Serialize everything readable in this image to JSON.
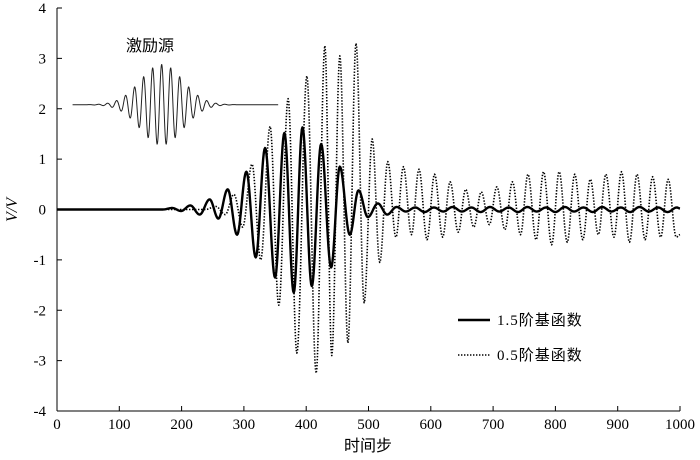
{
  "chart_data": {
    "type": "line",
    "xlabel": "时间步",
    "ylabel": "V/V",
    "xlim": [
      0,
      1000
    ],
    "ylim": [
      -4,
      4
    ],
    "xticks": [
      0,
      100,
      200,
      300,
      400,
      500,
      600,
      700,
      800,
      900,
      1000
    ],
    "yticks": [
      -4,
      -3,
      -2,
      -1,
      0,
      1,
      2,
      3,
      4
    ],
    "grid": false,
    "legend_position": "lower-right",
    "annotation": "激励源",
    "series": [
      {
        "name": "1.5阶基函数",
        "style": "solid",
        "color": "#000000",
        "x": [
          0,
          170,
          185,
          199,
          214,
          229,
          245,
          259,
          274,
          289,
          304,
          319,
          334,
          350,
          365,
          380,
          394,
          409,
          424,
          440,
          454,
          470,
          484,
          499,
          515,
          530,
          545,
          560,
          575,
          590,
          605,
          620,
          635,
          650,
          665,
          680,
          695,
          710,
          725,
          740,
          755,
          770,
          785,
          800,
          815,
          830,
          845,
          860,
          875,
          890,
          905,
          920,
          935,
          950,
          965,
          980,
          995,
          1000
        ],
        "y": [
          0,
          0,
          0.03,
          -0.03,
          0.08,
          -0.1,
          0.2,
          -0.18,
          0.4,
          -0.5,
          0.75,
          -0.95,
          1.22,
          -1.35,
          1.52,
          -1.65,
          1.63,
          -1.52,
          1.3,
          -1.15,
          0.85,
          -0.5,
          0.38,
          -0.15,
          0.12,
          -0.1,
          0.05,
          -0.04,
          0.04,
          -0.05,
          0.04,
          -0.04,
          0.05,
          -0.04,
          0.04,
          -0.05,
          0.05,
          -0.04,
          0.04,
          -0.05,
          0.05,
          -0.04,
          0.04,
          -0.05,
          0.05,
          -0.04,
          0.04,
          -0.05,
          0.05,
          -0.04,
          0.04,
          -0.05,
          0.05,
          -0.04,
          0.04,
          -0.05,
          0.04,
          0.02
        ]
      },
      {
        "name": "0.5阶基函数",
        "style": "dotted",
        "color": "#000000",
        "x": [
          0,
          238,
          255,
          270,
          284,
          298,
          313,
          327,
          342,
          356,
          371,
          385,
          401,
          416,
          430,
          441,
          454,
          467,
          480,
          493,
          506,
          518,
          531,
          544,
          556,
          569,
          581,
          594,
          606,
          619,
          631,
          644,
          656,
          669,
          681,
          694,
          706,
          719,
          731,
          744,
          756,
          769,
          781,
          794,
          806,
          819,
          831,
          844,
          856,
          869,
          881,
          894,
          906,
          919,
          931,
          944,
          956,
          969,
          981,
          994,
          1000
        ],
        "y": [
          0,
          0,
          0.06,
          -0.1,
          0.3,
          -0.35,
          0.9,
          -1.0,
          1.65,
          -1.9,
          2.2,
          -2.85,
          2.65,
          -3.25,
          3.25,
          -2.9,
          3.05,
          -2.65,
          3.3,
          -1.85,
          1.4,
          -1.05,
          0.95,
          -0.55,
          0.85,
          -0.5,
          0.8,
          -0.6,
          0.7,
          -0.55,
          0.55,
          -0.45,
          0.4,
          -0.35,
          0.35,
          -0.3,
          0.45,
          -0.4,
          0.55,
          -0.5,
          0.7,
          -0.6,
          0.75,
          -0.7,
          0.75,
          -0.65,
          0.7,
          -0.6,
          0.6,
          -0.5,
          0.7,
          -0.55,
          0.75,
          -0.65,
          0.7,
          -0.6,
          0.65,
          -0.55,
          0.6,
          -0.55,
          -0.5
        ]
      }
    ]
  }
}
